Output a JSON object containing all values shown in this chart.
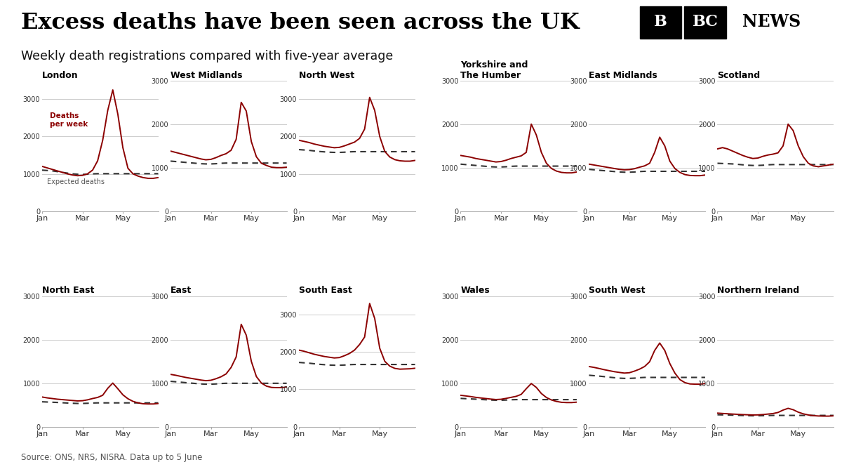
{
  "title": "Excess deaths have been seen across the UK",
  "subtitle": "Weekly death registrations compared with five-year average",
  "source": "Source: ONS, NRS, NISRA. Data up to 5 June",
  "background_color": "#ffffff",
  "line_color": "#8B0000",
  "expected_color": "#333333",
  "title_fontsize": 22,
  "subtitle_fontsize": 13,
  "regions": [
    {
      "name": "London",
      "row": 0,
      "col": 0,
      "ylim": [
        0,
        3500
      ],
      "yticks": [
        0,
        1000,
        2000,
        3000
      ],
      "actual": [
        1200,
        1160,
        1120,
        1080,
        1040,
        1000,
        970,
        950,
        960,
        1000,
        1100,
        1350,
        1900,
        2700,
        3250,
        2600,
        1700,
        1150,
        1000,
        940,
        900,
        880,
        880,
        900
      ],
      "expected": [
        1100,
        1090,
        1080,
        1060,
        1040,
        1020,
        1000,
        990,
        985,
        990,
        1000,
        1005,
        1005,
        1005,
        1005,
        1005,
        1005,
        1005,
        1005,
        1005,
        1005,
        1005,
        1005,
        1005
      ],
      "show_annotation": true
    },
    {
      "name": "West Midlands",
      "row": 0,
      "col": 1,
      "ylim": [
        0,
        3000
      ],
      "yticks": [
        0,
        1000,
        2000,
        3000
      ],
      "actual": [
        1380,
        1350,
        1320,
        1290,
        1260,
        1230,
        1200,
        1180,
        1190,
        1230,
        1280,
        1320,
        1400,
        1650,
        2500,
        2300,
        1600,
        1250,
        1100,
        1050,
        1010,
        1000,
        1000,
        1010
      ],
      "expected": [
        1150,
        1140,
        1130,
        1120,
        1110,
        1100,
        1090,
        1085,
        1085,
        1090,
        1100,
        1105,
        1105,
        1105,
        1105,
        1105,
        1105,
        1105,
        1105,
        1105,
        1105,
        1105,
        1105,
        1105
      ]
    },
    {
      "name": "North West",
      "row": 0,
      "col": 2,
      "ylim": [
        0,
        3500
      ],
      "yticks": [
        0,
        1000,
        2000,
        3000
      ],
      "actual": [
        1900,
        1870,
        1840,
        1800,
        1770,
        1740,
        1720,
        1700,
        1710,
        1750,
        1800,
        1850,
        1950,
        2200,
        3050,
        2700,
        2000,
        1600,
        1450,
        1380,
        1350,
        1340,
        1340,
        1360
      ],
      "expected": [
        1650,
        1640,
        1630,
        1615,
        1600,
        1590,
        1580,
        1575,
        1575,
        1580,
        1590,
        1595,
        1595,
        1595,
        1595,
        1595,
        1595,
        1595,
        1595,
        1595,
        1595,
        1595,
        1595,
        1595
      ]
    },
    {
      "name": "Yorkshire and\nThe Humber",
      "row": 0,
      "col": 3,
      "ylim": [
        0,
        3000
      ],
      "yticks": [
        0,
        1000,
        2000,
        3000
      ],
      "actual": [
        1280,
        1260,
        1240,
        1210,
        1190,
        1170,
        1150,
        1130,
        1140,
        1170,
        1210,
        1240,
        1270,
        1350,
        2000,
        1750,
        1350,
        1100,
        980,
        920,
        890,
        880,
        880,
        900
      ],
      "expected": [
        1080,
        1070,
        1060,
        1050,
        1040,
        1030,
        1020,
        1015,
        1015,
        1020,
        1030,
        1035,
        1035,
        1035,
        1035,
        1035,
        1035,
        1035,
        1035,
        1035,
        1035,
        1035,
        1035,
        1035
      ]
    },
    {
      "name": "East Midlands",
      "row": 0,
      "col": 4,
      "ylim": [
        0,
        3000
      ],
      "yticks": [
        0,
        1000,
        2000,
        3000
      ],
      "actual": [
        1080,
        1060,
        1040,
        1020,
        1000,
        980,
        960,
        950,
        955,
        975,
        1010,
        1040,
        1100,
        1350,
        1700,
        1500,
        1150,
        980,
        890,
        840,
        820,
        815,
        815,
        830
      ],
      "expected": [
        960,
        950,
        940,
        930,
        920,
        910,
        900,
        895,
        895,
        900,
        910,
        915,
        915,
        915,
        915,
        915,
        915,
        915,
        915,
        915,
        915,
        915,
        915,
        915
      ]
    },
    {
      "name": "Scotland",
      "row": 0,
      "col": 5,
      "ylim": [
        0,
        3000
      ],
      "yticks": [
        0,
        1000,
        2000,
        3000
      ],
      "actual": [
        1430,
        1460,
        1430,
        1380,
        1330,
        1280,
        1240,
        1210,
        1220,
        1260,
        1290,
        1310,
        1340,
        1500,
        2000,
        1850,
        1500,
        1250,
        1100,
        1040,
        1020,
        1040,
        1060,
        1080
      ],
      "expected": [
        1100,
        1095,
        1090,
        1085,
        1075,
        1065,
        1055,
        1050,
        1050,
        1055,
        1065,
        1070,
        1070,
        1070,
        1070,
        1070,
        1070,
        1070,
        1070,
        1070,
        1070,
        1070,
        1070,
        1070
      ]
    },
    {
      "name": "North East",
      "row": 1,
      "col": 0,
      "ylim": [
        0,
        3000
      ],
      "yticks": [
        0,
        1000,
        2000,
        3000
      ],
      "actual": [
        680,
        660,
        645,
        630,
        620,
        610,
        600,
        590,
        595,
        615,
        645,
        670,
        720,
        880,
        1000,
        870,
        730,
        640,
        580,
        545,
        525,
        520,
        520,
        530
      ],
      "expected": [
        570,
        565,
        560,
        555,
        548,
        542,
        536,
        532,
        532,
        536,
        542,
        545,
        545,
        545,
        545,
        545,
        545,
        545,
        545,
        545,
        545,
        545,
        545,
        545
      ]
    },
    {
      "name": "East",
      "row": 1,
      "col": 1,
      "ylim": [
        0,
        3000
      ],
      "yticks": [
        0,
        1000,
        2000,
        3000
      ],
      "actual": [
        1200,
        1180,
        1155,
        1130,
        1110,
        1090,
        1070,
        1055,
        1065,
        1100,
        1145,
        1210,
        1360,
        1600,
        2350,
        2100,
        1500,
        1150,
        1000,
        930,
        900,
        895,
        895,
        910
      ],
      "expected": [
        1040,
        1030,
        1020,
        1010,
        1000,
        990,
        980,
        975,
        975,
        980,
        990,
        995,
        995,
        995,
        995,
        995,
        995,
        995,
        995,
        995,
        995,
        995,
        995,
        995
      ]
    },
    {
      "name": "South East",
      "row": 1,
      "col": 2,
      "ylim": [
        0,
        3500
      ],
      "yticks": [
        0,
        1000,
        2000,
        3000
      ],
      "actual": [
        2050,
        2020,
        1980,
        1940,
        1910,
        1880,
        1860,
        1840,
        1850,
        1900,
        1960,
        2050,
        2200,
        2400,
        3300,
        2900,
        2100,
        1750,
        1620,
        1560,
        1540,
        1545,
        1550,
        1565
      ],
      "expected": [
        1720,
        1710,
        1700,
        1685,
        1670,
        1660,
        1650,
        1645,
        1645,
        1650,
        1660,
        1665,
        1665,
        1665,
        1665,
        1665,
        1665,
        1665,
        1665,
        1665,
        1665,
        1665,
        1665,
        1665
      ]
    },
    {
      "name": "Wales",
      "row": 1,
      "col": 3,
      "ylim": [
        0,
        3000
      ],
      "yticks": [
        0,
        1000,
        2000,
        3000
      ],
      "actual": [
        720,
        705,
        690,
        672,
        658,
        645,
        632,
        622,
        628,
        648,
        672,
        695,
        740,
        870,
        990,
        900,
        760,
        668,
        612,
        578,
        558,
        552,
        552,
        562
      ],
      "expected": [
        648,
        642,
        636,
        630,
        623,
        617,
        610,
        606,
        606,
        610,
        617,
        620,
        620,
        620,
        620,
        620,
        620,
        620,
        620,
        620,
        620,
        620,
        620,
        620
      ]
    },
    {
      "name": "South West",
      "row": 1,
      "col": 4,
      "ylim": [
        0,
        3000
      ],
      "yticks": [
        0,
        1000,
        2000,
        3000
      ],
      "actual": [
        1380,
        1360,
        1335,
        1308,
        1285,
        1262,
        1245,
        1230,
        1238,
        1275,
        1320,
        1380,
        1490,
        1750,
        1920,
        1750,
        1450,
        1230,
        1080,
        1010,
        980,
        975,
        975,
        990
      ],
      "expected": [
        1180,
        1170,
        1160,
        1148,
        1135,
        1124,
        1113,
        1108,
        1108,
        1113,
        1124,
        1130,
        1130,
        1130,
        1130,
        1130,
        1130,
        1130,
        1130,
        1130,
        1130,
        1130,
        1130,
        1130
      ]
    },
    {
      "name": "Northern Ireland",
      "row": 1,
      "col": 5,
      "ylim": [
        0,
        3000
      ],
      "yticks": [
        0,
        1000,
        2000,
        3000
      ],
      "actual": [
        310,
        302,
        295,
        288,
        282,
        276,
        271,
        267,
        269,
        277,
        288,
        300,
        325,
        380,
        420,
        388,
        332,
        293,
        267,
        252,
        244,
        241,
        241,
        247
      ],
      "expected": [
        272,
        269,
        266,
        263,
        259,
        255,
        251,
        249,
        249,
        251,
        255,
        257,
        257,
        257,
        257,
        257,
        257,
        257,
        257,
        257,
        257,
        257,
        257,
        257
      ]
    }
  ],
  "x_tick_positions": [
    0,
    8,
    16
  ],
  "x_tick_labels": [
    "Jan",
    "Mar",
    "May"
  ],
  "n_points": 24
}
